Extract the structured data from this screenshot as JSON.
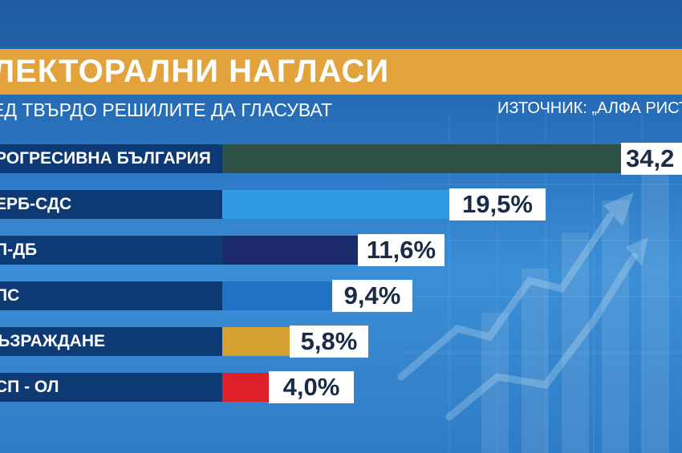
{
  "header": {
    "title": "ЛЕКТОРАЛНИ НАГЛАСИ",
    "subtitle": "ЕД ТВЪРДО РЕШИЛИТЕ ДА ГЛАСУВАТ",
    "source": "ИЗТОЧНИК: „АЛФА РИСЪ"
  },
  "colors": {
    "banner": "#e2a33c",
    "label_bg": "#0d3a74"
  },
  "chart_data": {
    "type": "bar",
    "orientation": "horizontal",
    "categories": [
      "РОГРЕСИВНА БЪЛГАРИЯ",
      "ЕРБ-СДС",
      "П-ДБ",
      "ПС",
      "ЪЗРАЖДАНЕ",
      "СП - ОЛ"
    ],
    "values": [
      34.2,
      19.5,
      11.6,
      9.4,
      5.8,
      4.0
    ],
    "value_labels": [
      "34,2",
      "19,5%",
      "11,6%",
      "9,4%",
      "5,8%",
      "4,0%"
    ],
    "bar_colors": [
      "#2d5145",
      "#2e9be6",
      "#1b2a6b",
      "#1f72c4",
      "#d4a030",
      "#e02028"
    ],
    "title": "ЛЕКТОРАЛНИ НАГЛАСИ",
    "xlabel": "",
    "ylabel": "",
    "xlim": [
      0,
      34.2
    ]
  }
}
